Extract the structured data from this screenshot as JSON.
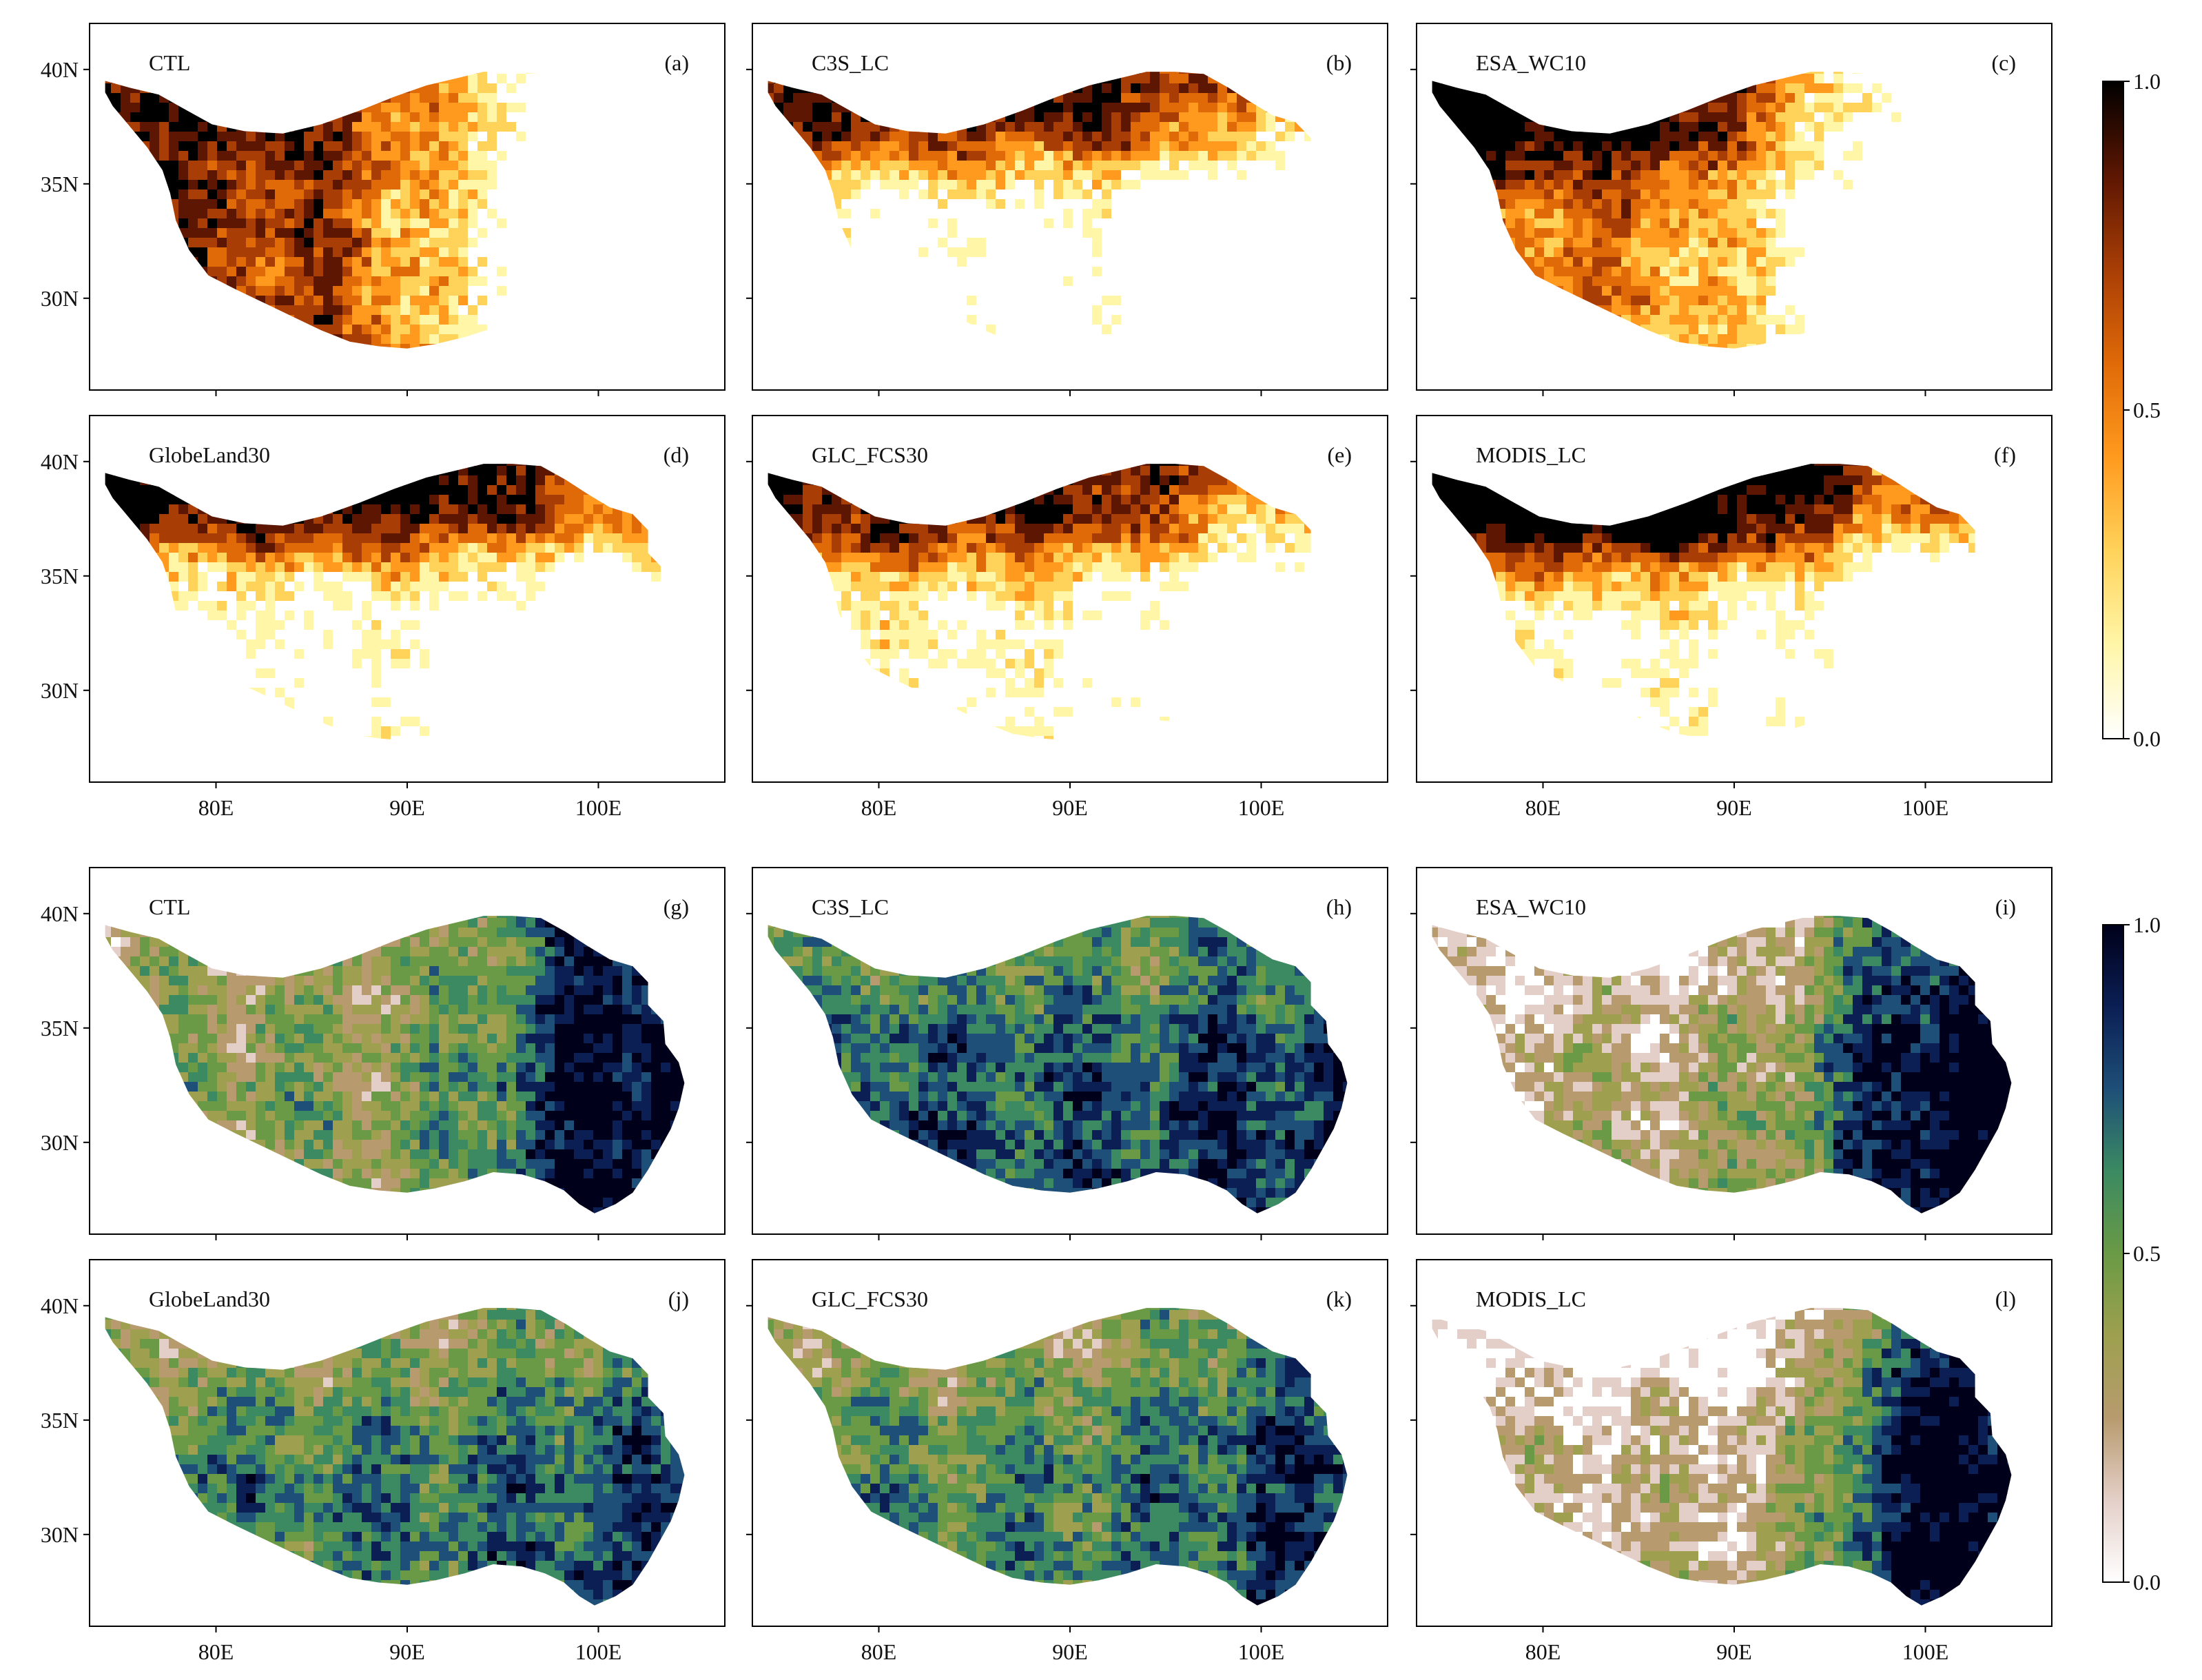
{
  "figure": {
    "groups": [
      {
        "id": "top",
        "colormap": "afmhot_r",
        "colors": [
          "#ffffff",
          "#fff6a8",
          "#ffd25a",
          "#ff9a1e",
          "#e06a08",
          "#a83e06",
          "#5c1602",
          "#000000"
        ],
        "colorbar": {
          "ticks": [
            "1.0",
            "0.5",
            "0.0"
          ]
        },
        "panels": [
          {
            "name": "CTL",
            "letter": "(a)"
          },
          {
            "name": "C3S_LC",
            "letter": "(b)"
          },
          {
            "name": "ESA_WC10",
            "letter": "(c)"
          },
          {
            "name": "GlobeLand30",
            "letter": "(d)"
          },
          {
            "name": "GLC_FCS30",
            "letter": "(e)"
          },
          {
            "name": "MODIS_LC",
            "letter": "(f)"
          }
        ]
      },
      {
        "id": "bottom",
        "colormap": "gist_earth_r",
        "colors": [
          "#ffffff",
          "#e4cfc8",
          "#b79b6e",
          "#9ea04f",
          "#6a9a45",
          "#3b8a62",
          "#1e4f78",
          "#0b1f55",
          "#00001a"
        ],
        "colorbar": {
          "ticks": [
            "1.0",
            "0.5",
            "0.0"
          ]
        },
        "panels": [
          {
            "name": "CTL",
            "letter": "(g)"
          },
          {
            "name": "C3S_LC",
            "letter": "(h)"
          },
          {
            "name": "ESA_WC10",
            "letter": "(i)"
          },
          {
            "name": "GlobeLand30",
            "letter": "(j)"
          },
          {
            "name": "GLC_FCS30",
            "letter": "(k)"
          },
          {
            "name": "MODIS_LC",
            "letter": "(l)"
          }
        ]
      }
    ],
    "axes": {
      "lon_ticks": [
        "80E",
        "90E",
        "100E"
      ],
      "lat_ticks": [
        "40N",
        "35N",
        "30N"
      ]
    }
  }
}
